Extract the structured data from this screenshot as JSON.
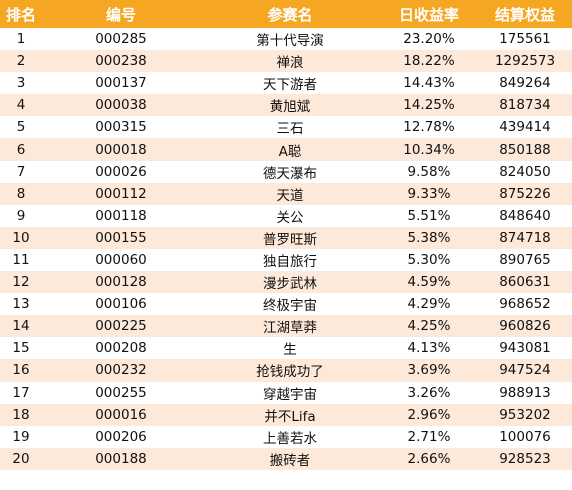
{
  "table": {
    "headers": [
      "排名",
      "编号",
      "参赛名",
      "日收益率",
      "结算权益"
    ],
    "rows": [
      [
        "1",
        "000285",
        "第十代导演",
        "23.20%",
        "175561"
      ],
      [
        "2",
        "000238",
        "禅浪",
        "18.22%",
        "1292573"
      ],
      [
        "3",
        "000137",
        "天下游者",
        "14.43%",
        "849264"
      ],
      [
        "4",
        "000038",
        "黄旭斌",
        "14.25%",
        "818734"
      ],
      [
        "5",
        "000315",
        "三石",
        "12.78%",
        "439414"
      ],
      [
        "6",
        "000018",
        "A聪",
        "10.34%",
        "850188"
      ],
      [
        "7",
        "000026",
        "德天瀑布",
        "9.58%",
        "824050"
      ],
      [
        "8",
        "000112",
        "天道",
        "9.33%",
        "875226"
      ],
      [
        "9",
        "000118",
        "关公",
        "5.51%",
        "848640"
      ],
      [
        "10",
        "000155",
        "普罗旺斯",
        "5.38%",
        "874718"
      ],
      [
        "11",
        "000060",
        "独自旅行",
        "5.30%",
        "890765"
      ],
      [
        "12",
        "000128",
        "漫步武林",
        "4.59%",
        "860631"
      ],
      [
        "13",
        "000106",
        "终极宇宙",
        "4.29%",
        "968652"
      ],
      [
        "14",
        "000225",
        "江湖草莽",
        "4.25%",
        "960826"
      ],
      [
        "15",
        "000208",
        "生",
        "4.13%",
        "943081"
      ],
      [
        "16",
        "000232",
        "抢钱成功了",
        "3.69%",
        "947524"
      ],
      [
        "17",
        "000255",
        "穿越宇宙",
        "3.26%",
        "988913"
      ],
      [
        "18",
        "000016",
        "并不Lifa",
        "2.96%",
        "953202"
      ],
      [
        "19",
        "000206",
        "上善若水",
        "2.71%",
        "100076"
      ],
      [
        "20",
        "000188",
        "搬砖者",
        "2.66%",
        "928523"
      ]
    ]
  },
  "colors": {
    "header_bg": "#f5a623",
    "header_text": "#ffffff",
    "stripe_bg": "#fde9d9",
    "row_bg": "#ffffff"
  }
}
